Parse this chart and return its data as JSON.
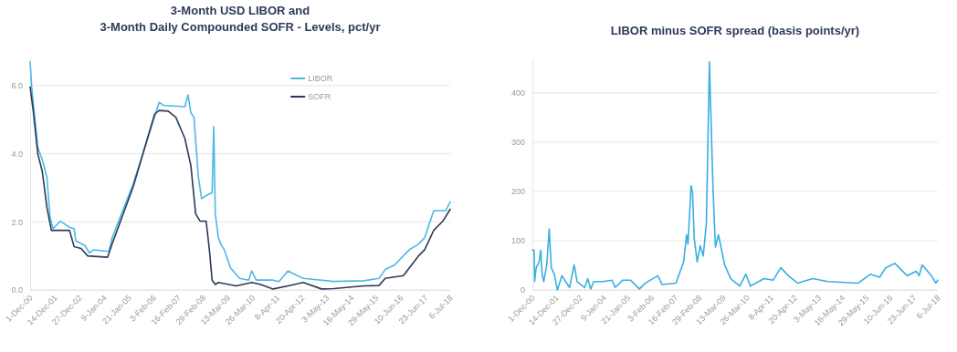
{
  "chart_data": [
    {
      "type": "line",
      "title": "3-Month USD LIBOR and\n3-Month Daily Compounded SOFR - Levels, pct/yr",
      "xlim": [
        "2000-12-01",
        "2018-07-06"
      ],
      "xticks": [
        {
          "value": "2000-12-01",
          "label": "1-Dec-00"
        },
        {
          "value": "2001-12-14",
          "label": "14-Dec-01"
        },
        {
          "value": "2002-12-27",
          "label": "27-Dec-02"
        },
        {
          "value": "2004-01-09",
          "label": "9-Jan-04"
        },
        {
          "value": "2005-01-21",
          "label": "21-Jan-05"
        },
        {
          "value": "2006-02-03",
          "label": "3-Feb-06"
        },
        {
          "value": "2007-02-16",
          "label": "16-Feb-07"
        },
        {
          "value": "2008-02-29",
          "label": "29-Feb-08"
        },
        {
          "value": "2009-03-13",
          "label": "13-Mar-09"
        },
        {
          "value": "2010-03-26",
          "label": "26-Mar-10"
        },
        {
          "value": "2011-04-08",
          "label": "8-Apr-11"
        },
        {
          "value": "2012-04-20",
          "label": "20-Apr-12"
        },
        {
          "value": "2013-05-03",
          "label": "3-May-13"
        },
        {
          "value": "2014-05-16",
          "label": "16-May-14"
        },
        {
          "value": "2015-05-29",
          "label": "29-May-15"
        },
        {
          "value": "2016-06-10",
          "label": "10-Jun-16"
        },
        {
          "value": "2017-06-23",
          "label": "23-Jun-17"
        },
        {
          "value": "2018-07-06",
          "label": "6-Jul-18"
        }
      ],
      "ylim": [
        0,
        6.8
      ],
      "yticks": [
        {
          "value": 0,
          "label": "0.0"
        },
        {
          "value": 2,
          "label": "2.0"
        },
        {
          "value": 4,
          "label": "4.0"
        },
        {
          "value": 6,
          "label": "6.0"
        }
      ],
      "grid": "y",
      "legend": "top right",
      "series": [
        {
          "name": "LIBOR",
          "color": "#4db8e8",
          "x": [
            "2000-12-01",
            "2000-12-25",
            "2001-02-10",
            "2001-03-28",
            "2001-06-05",
            "2001-08-15",
            "2001-10-01",
            "2001-11-15",
            "2002-03-10",
            "2002-07-26",
            "2002-10-05",
            "2002-11-01",
            "2003-03-18",
            "2003-05-26",
            "2003-08-04",
            "2004-03-20",
            "2004-05-08",
            "2005-03-28",
            "2006-04-27",
            "2006-07-05",
            "2007-05-26",
            "2007-07-13",
            "2007-08-26",
            "2007-10-12",
            "2007-12-20",
            "2008-02-06",
            "2008-04-16",
            "2008-07-16",
            "2008-08-10",
            "2008-09-02",
            "2008-10-20",
            "2008-12-06",
            "2009-01-19",
            "2009-04-23",
            "2009-09-09",
            "2010-01-26",
            "2010-03-14",
            "2010-05-22",
            "2011-02-03",
            "2011-05-05",
            "2011-09-20",
            "2011-12-20",
            "2012-05-10",
            "2013-08-18",
            "2014-11-25",
            "2015-07-13",
            "2015-10-16",
            "2016-03-03",
            "2016-10-19",
            "2017-03-08",
            "2017-06-10",
            "2017-10-27",
            "2018-05-01",
            "2018-07-06"
          ],
          "values": [
            6.7,
            5.96,
            5.07,
            4.19,
            3.83,
            3.3,
            2.15,
            1.8,
            2.02,
            1.84,
            1.8,
            1.44,
            1.31,
            1.09,
            1.18,
            1.13,
            1.53,
            3.12,
            5.51,
            5.42,
            5.38,
            5.73,
            5.2,
            5.07,
            3.3,
            2.68,
            2.77,
            2.86,
            4.8,
            2.24,
            1.53,
            1.31,
            1.18,
            0.65,
            0.34,
            0.29,
            0.56,
            0.29,
            0.29,
            0.25,
            0.56,
            0.47,
            0.34,
            0.25,
            0.27,
            0.34,
            0.6,
            0.73,
            1.18,
            1.35,
            1.53,
            2.33,
            2.33,
            2.59
          ]
        },
        {
          "name": "SOFR",
          "color": "#2b3a55",
          "x": [
            "2000-12-01",
            "2001-01-18",
            "2001-03-28",
            "2001-06-05",
            "2001-08-15",
            "2001-10-22",
            "2002-07-26",
            "2002-10-05",
            "2003-01-20",
            "2003-05-01",
            "2004-02-28",
            "2004-05-08",
            "2005-03-28",
            "2006-02-17",
            "2006-04-27",
            "2006-09-13",
            "2007-01-08",
            "2007-05-26",
            "2007-08-26",
            "2007-11-07",
            "2008-01-15",
            "2008-04-16",
            "2008-06-04",
            "2008-07-16",
            "2008-09-02",
            "2008-10-20",
            "2009-07-22",
            "2010-03-14",
            "2010-07-31",
            "2011-02-03",
            "2011-09-20",
            "2012-05-10",
            "2013-02-14",
            "2013-08-18",
            "2014-11-25",
            "2015-07-13",
            "2015-10-16",
            "2016-07-20",
            "2017-03-08",
            "2017-06-10",
            "2017-10-27",
            "2018-03-15",
            "2018-07-06"
          ],
          "values": [
            5.96,
            5.25,
            4.0,
            3.48,
            2.42,
            1.75,
            1.75,
            1.27,
            1.22,
            1.0,
            0.96,
            1.35,
            3.04,
            5.16,
            5.27,
            5.25,
            5.07,
            4.45,
            3.65,
            2.24,
            2.02,
            2.02,
            1.18,
            0.29,
            0.16,
            0.22,
            0.12,
            0.22,
            0.16,
            0.03,
            0.12,
            0.22,
            0.03,
            0.04,
            0.12,
            0.13,
            0.34,
            0.42,
            1.0,
            1.18,
            1.75,
            2.02,
            2.37
          ]
        }
      ]
    },
    {
      "type": "line",
      "title": "LIBOR minus SOFR spread (basis points/yr)",
      "xlim": [
        "2000-12-01",
        "2018-07-06"
      ],
      "xticks": [
        {
          "value": "2000-12-01",
          "label": "1-Dec-00"
        },
        {
          "value": "2001-12-14",
          "label": "14-Dec-01"
        },
        {
          "value": "2002-12-27",
          "label": "27-Dec-02"
        },
        {
          "value": "2004-01-09",
          "label": "9-Jan-04"
        },
        {
          "value": "2005-01-21",
          "label": "21-Jan-05"
        },
        {
          "value": "2006-02-03",
          "label": "3-Feb-06"
        },
        {
          "value": "2007-02-16",
          "label": "16-Feb-07"
        },
        {
          "value": "2008-02-29",
          "label": "29-Feb-08"
        },
        {
          "value": "2009-03-13",
          "label": "13-Mar-09"
        },
        {
          "value": "2010-03-26",
          "label": "26-Mar-10"
        },
        {
          "value": "2011-04-08",
          "label": "8-Apr-11"
        },
        {
          "value": "2012-04-20",
          "label": "20-Apr-12"
        },
        {
          "value": "2013-05-03",
          "label": "3-May-13"
        },
        {
          "value": "2014-05-16",
          "label": "16-May-14"
        },
        {
          "value": "2015-05-29",
          "label": "29-May-15"
        },
        {
          "value": "2016-06-10",
          "label": "10-Jun-16"
        },
        {
          "value": "2017-06-23",
          "label": "23-Jun-17"
        },
        {
          "value": "2018-07-06",
          "label": "6-Jul-18"
        }
      ],
      "ylim": [
        0,
        470
      ],
      "yticks": [
        0,
        100,
        200,
        300,
        400
      ],
      "grid": "y",
      "series": [
        {
          "color": "#3aaee0",
          "x": [
            "2000-12-01",
            "2000-12-28",
            "2001-01-05",
            "2001-01-30",
            "2001-03-18",
            "2001-04-12",
            "2001-05-05",
            "2001-05-30",
            "2001-07-17",
            "2001-08-25",
            "2001-09-27",
            "2001-11-14",
            "2002-01-01",
            "2002-03-15",
            "2002-07-13",
            "2002-09-24",
            "2002-11-10",
            "2003-03-10",
            "2003-04-27",
            "2003-06-14",
            "2003-08-01",
            "2003-12-24",
            "2004-05-18",
            "2004-07-05",
            "2004-11-03",
            "2005-03-04",
            "2005-07-24",
            "2005-10-30",
            "2006-05-11",
            "2006-07-20",
            "2007-02-24",
            "2007-06-25",
            "2007-08-11",
            "2007-09-02",
            "2007-10-22",
            "2007-11-14",
            "2007-12-09",
            "2008-01-26",
            "2008-03-14",
            "2008-05-01",
            "2008-06-20",
            "2008-08-07",
            "2008-09-14",
            "2008-10-04",
            "2008-11-10",
            "2008-12-28",
            "2009-04-05",
            "2009-07-10",
            "2009-12-01",
            "2010-03-07",
            "2010-05-19",
            "2010-12-20",
            "2011-05-15",
            "2011-09-12",
            "2012-01-11",
            "2012-06-03",
            "2013-01-30",
            "2013-09-28",
            "2015-01-23",
            "2015-08-03",
            "2015-12-27",
            "2016-04-01",
            "2016-08-25",
            "2017-03-07",
            "2017-07-27",
            "2017-09-13",
            "2017-10-31",
            "2018-03-25",
            "2018-06-04",
            "2018-07-06"
          ],
          "values": [
            81,
            81,
            17,
            45,
            57,
            81,
            32,
            17,
            51,
            124,
            45,
            32,
            0,
            29,
            5,
            51,
            17,
            5,
            23,
            2,
            17,
            17,
            20,
            5,
            20,
            20,
            2,
            14,
            29,
            11,
            14,
            57,
            112,
            93,
            212,
            197,
            106,
            57,
            90,
            69,
            136,
            463,
            289,
            203,
            87,
            112,
            51,
            23,
            8,
            32,
            8,
            23,
            20,
            45,
            29,
            14,
            23,
            17,
            14,
            32,
            26,
            45,
            54,
            29,
            38,
            29,
            51,
            29,
            14,
            20
          ]
        }
      ]
    }
  ]
}
